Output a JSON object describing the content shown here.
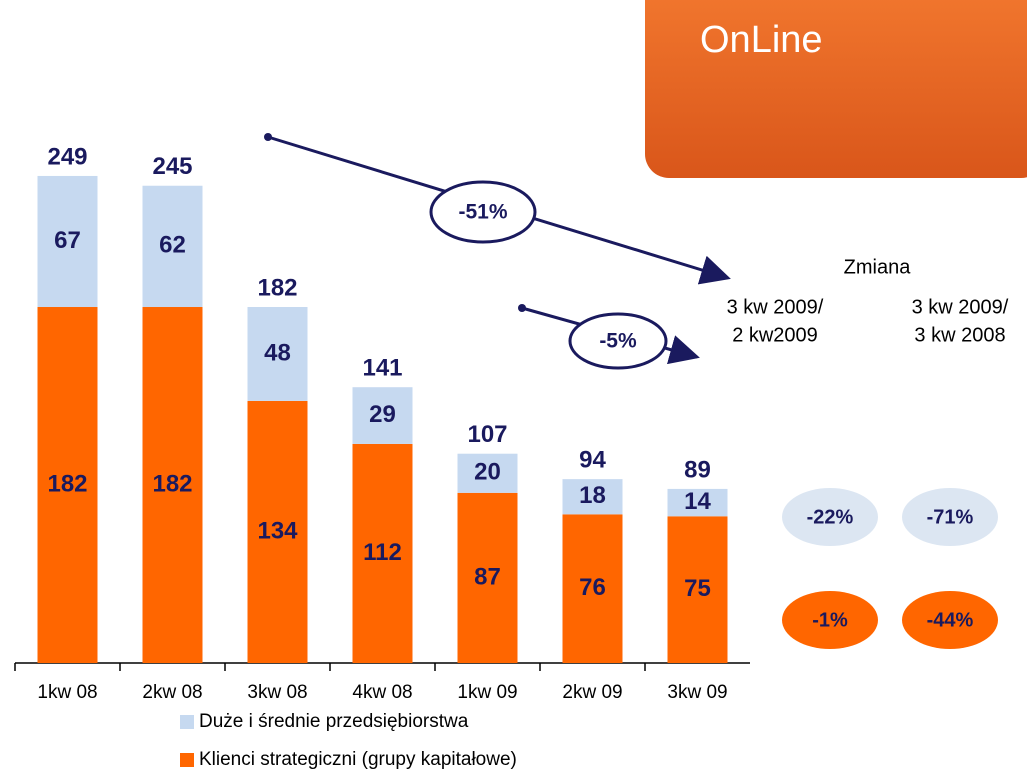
{
  "chart_data": {
    "type": "bar",
    "stacked": true,
    "categories": [
      "1kw 08",
      "2kw 08",
      "3kw 08",
      "4kw 08",
      "1kw 09",
      "2kw 09",
      "3kw 09"
    ],
    "series": [
      {
        "name": "Klienci strategiczni (grupy kapitałowe)",
        "color": "#ff6600",
        "values": [
          182,
          182,
          134,
          112,
          87,
          76,
          75
        ]
      },
      {
        "name": "Duże i średnie przedsiębiorstwa",
        "color": "#c6d9f0",
        "values": [
          67,
          62,
          48,
          29,
          20,
          18,
          14
        ]
      }
    ],
    "totals": [
      249,
      245,
      182,
      141,
      107,
      94,
      89
    ],
    "annotations": [
      "-51%",
      "-5%"
    ]
  },
  "change_table": {
    "title": "Zmiana",
    "columns": [
      {
        "header": [
          "3 kw 2009/",
          "2 kw2009"
        ],
        "values": [
          "-22%",
          "-1%"
        ]
      },
      {
        "header": [
          "3 kw 2009/",
          "3 kw 2008"
        ],
        "values": [
          "-71%",
          "-44%"
        ]
      }
    ]
  },
  "logo": {
    "text": "OnLine"
  }
}
